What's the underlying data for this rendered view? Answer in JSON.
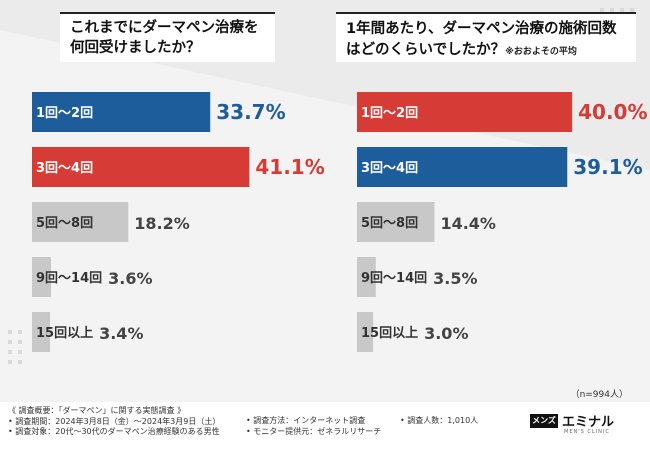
{
  "chart_data": [
    {
      "type": "bar",
      "orientation": "horizontal",
      "title": "これまでにダーマペン治療を何回受けましたか？",
      "categories": [
        "1回～2回",
        "3回～4回",
        "5回～8回",
        "9回～14回",
        "15回以上"
      ],
      "values": [
        33.7,
        41.1,
        18.2,
        3.6,
        3.4
      ],
      "value_labels": [
        "33.7%",
        "41.1%",
        "18.2%",
        "3.6%",
        "3.4%"
      ],
      "colors": [
        "#1e5d9c",
        "#d63b35",
        "#c8c8c8",
        "#c8c8c8",
        "#c8c8c8"
      ],
      "unit": "%",
      "xlim": [
        0,
        45
      ]
    },
    {
      "type": "bar",
      "orientation": "horizontal",
      "title": "1年間あたり、ダーマペン治療の施術回数はどのくらいでしたか？",
      "note": "※おおよその平均",
      "categories": [
        "1回～2回",
        "3回～4回",
        "5回～8回",
        "9回～14回",
        "15回以上"
      ],
      "values": [
        40.0,
        39.1,
        14.4,
        3.5,
        3.0
      ],
      "value_labels": [
        "40.0%",
        "39.1%",
        "14.4%",
        "3.5%",
        "3.0%"
      ],
      "colors": [
        "#d63b35",
        "#1e5d9c",
        "#c8c8c8",
        "#c8c8c8",
        "#c8c8c8"
      ],
      "unit": "%",
      "xlim": [
        0,
        45
      ]
    }
  ],
  "sample_size": "（n=994人）",
  "footer": {
    "survey_title": "《 調査概要：「ダーマペン」に関する実態調査 》",
    "period": "• 調査期間：2024年3月8日（金）～2024年3月9日（土）",
    "target": "• 調査対象：20代～30代のダーマペン治療経験のある男性",
    "method": "• 調査方法：インターネット調査",
    "provider": "• モニター提供元：ゼネラルリサーチ",
    "respondents": "• 調査人数：1,010人"
  },
  "brand": {
    "badge": "メンズ",
    "name": "エミナル",
    "sub": "MEN'S CLINIC"
  }
}
